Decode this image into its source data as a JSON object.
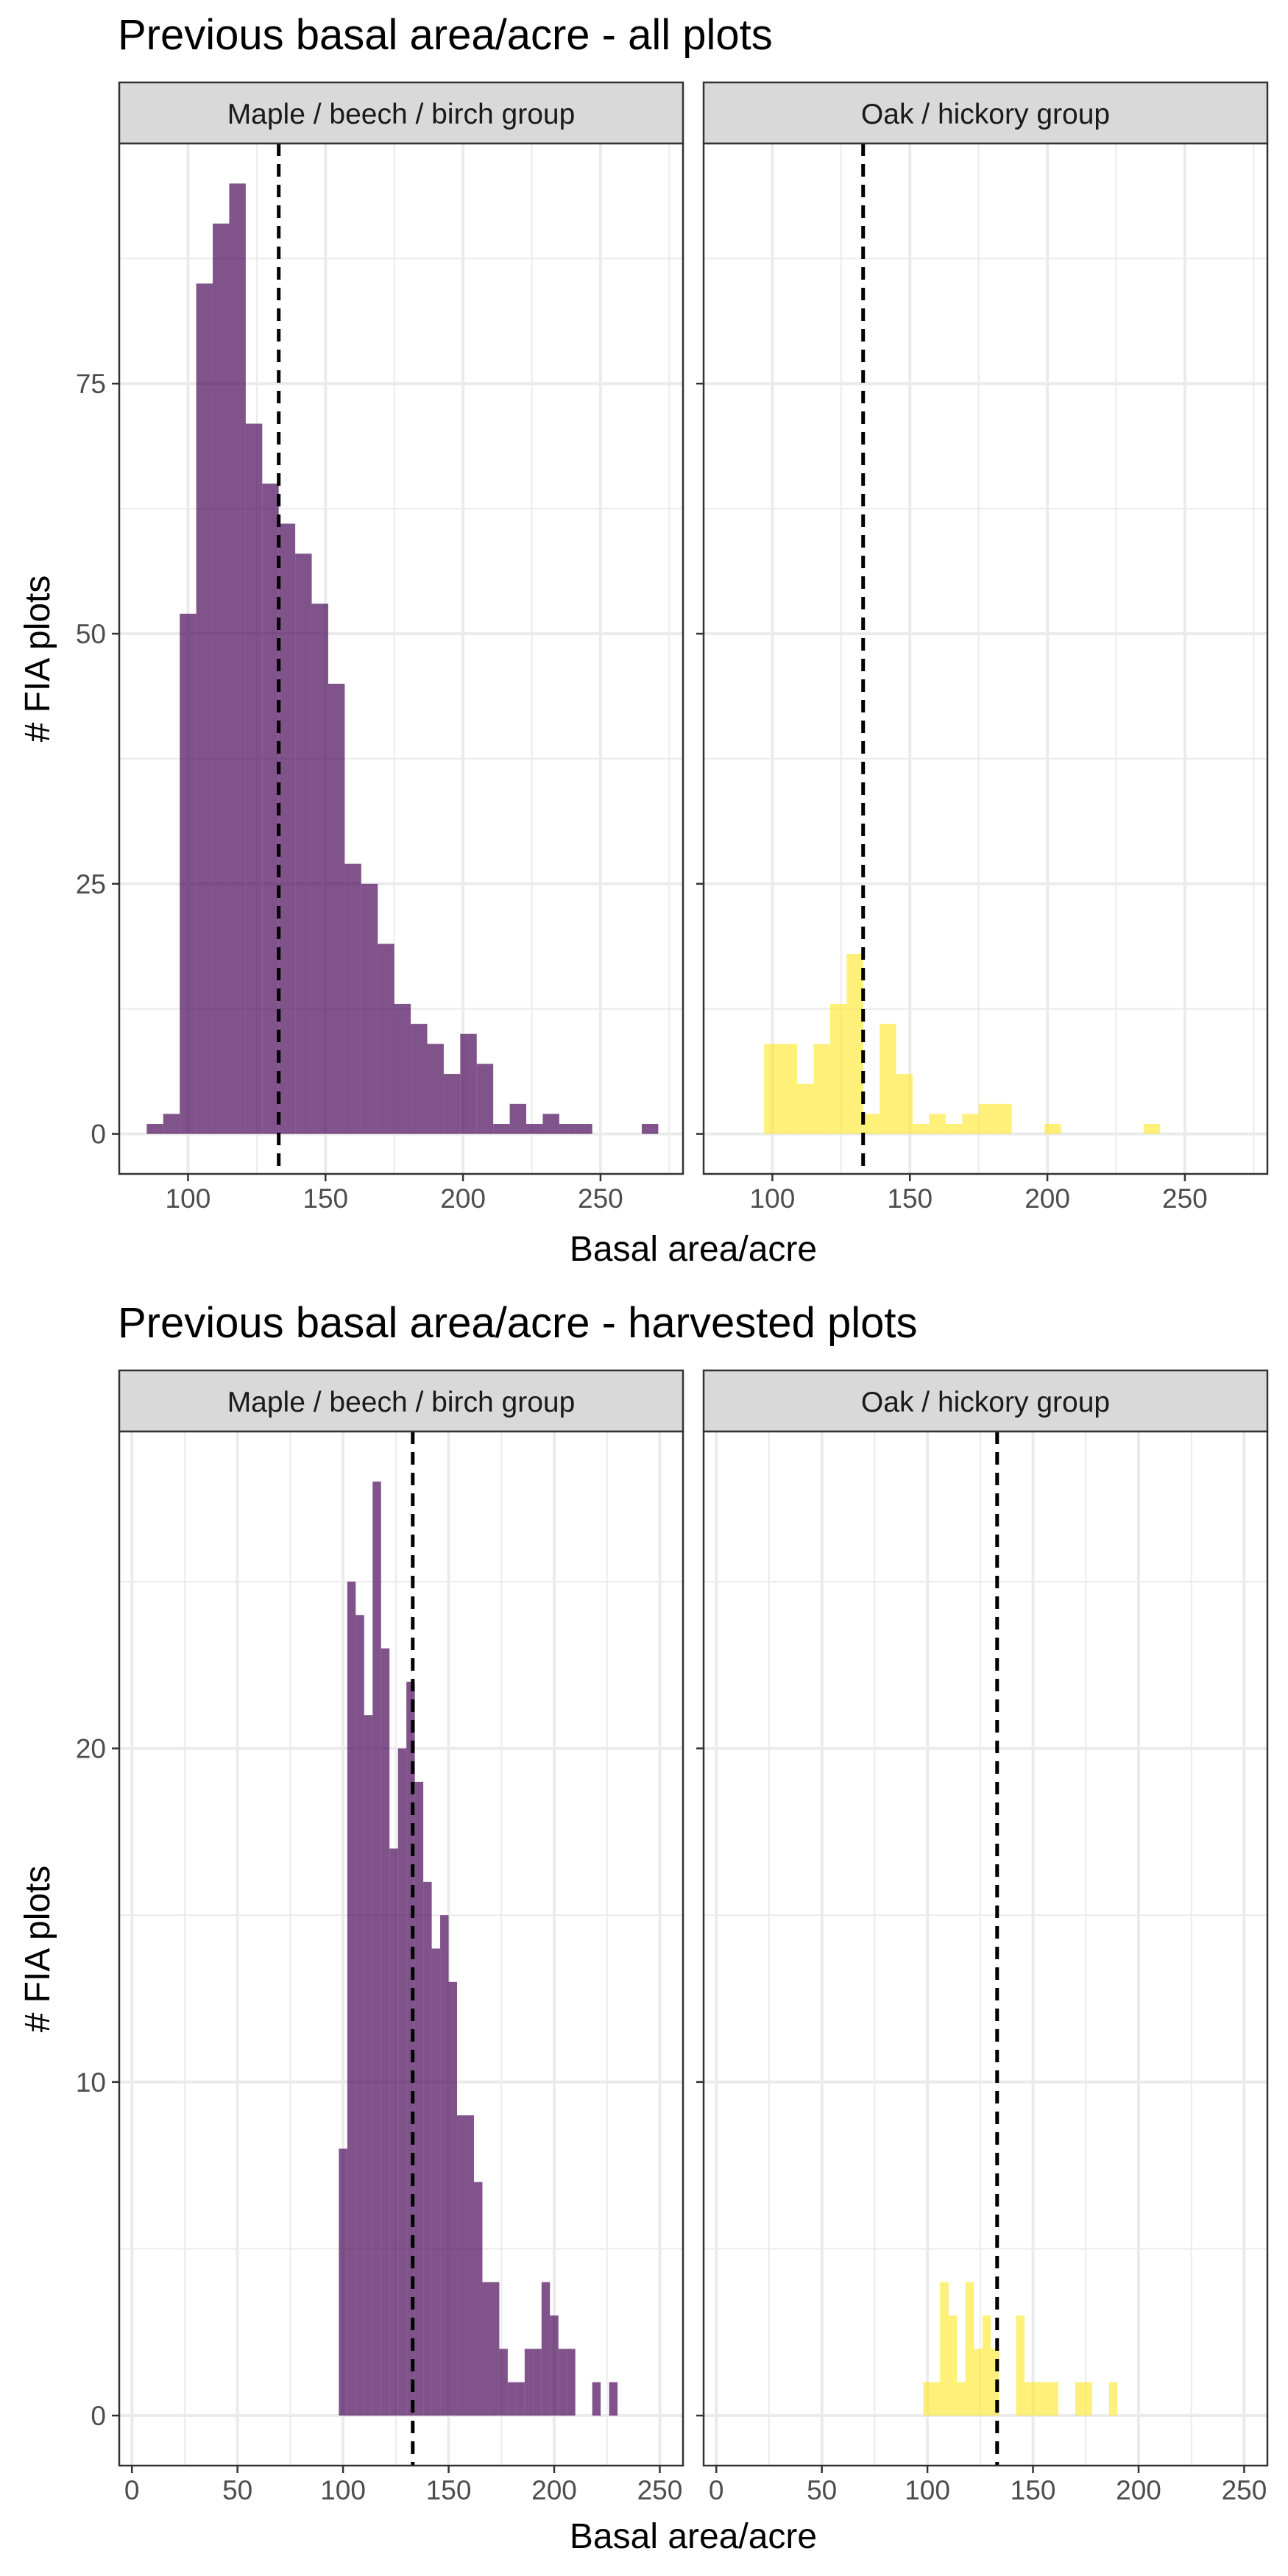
{
  "chart_data": [
    {
      "type": "bar",
      "title": "Previous basal area/acre - all plots",
      "xlabel": "Basal area/acre",
      "ylabel": "# FIA plots",
      "xlim": [
        75,
        280
      ],
      "ylim": [
        -4,
        99
      ],
      "x_ticks": [
        100,
        150,
        200,
        250
      ],
      "y_ticks": [
        0,
        25,
        50,
        75
      ],
      "ref_line_x": 133,
      "panels": [
        {
          "name": "Maple / beech / birch group",
          "color": "#440154",
          "bins": [
            {
              "x0": 85,
              "x1": 91,
              "count": 1
            },
            {
              "x0": 91,
              "x1": 97,
              "count": 2
            },
            {
              "x0": 97,
              "x1": 103,
              "count": 52
            },
            {
              "x0": 103,
              "x1": 109,
              "count": 85
            },
            {
              "x0": 109,
              "x1": 115,
              "count": 91
            },
            {
              "x0": 115,
              "x1": 121,
              "count": 95
            },
            {
              "x0": 121,
              "x1": 127,
              "count": 71
            },
            {
              "x0": 127,
              "x1": 133,
              "count": 65
            },
            {
              "x0": 133,
              "x1": 139,
              "count": 61
            },
            {
              "x0": 139,
              "x1": 145,
              "count": 58
            },
            {
              "x0": 145,
              "x1": 151,
              "count": 53
            },
            {
              "x0": 151,
              "x1": 157,
              "count": 45
            },
            {
              "x0": 157,
              "x1": 163,
              "count": 27
            },
            {
              "x0": 163,
              "x1": 169,
              "count": 25
            },
            {
              "x0": 169,
              "x1": 175,
              "count": 19
            },
            {
              "x0": 175,
              "x1": 181,
              "count": 13
            },
            {
              "x0": 181,
              "x1": 187,
              "count": 11
            },
            {
              "x0": 187,
              "x1": 193,
              "count": 9
            },
            {
              "x0": 193,
              "x1": 199,
              "count": 6
            },
            {
              "x0": 199,
              "x1": 205,
              "count": 10
            },
            {
              "x0": 205,
              "x1": 211,
              "count": 7
            },
            {
              "x0": 211,
              "x1": 217,
              "count": 1
            },
            {
              "x0": 217,
              "x1": 223,
              "count": 3
            },
            {
              "x0": 223,
              "x1": 229,
              "count": 1
            },
            {
              "x0": 229,
              "x1": 235,
              "count": 2
            },
            {
              "x0": 235,
              "x1": 241,
              "count": 1
            },
            {
              "x0": 241,
              "x1": 247,
              "count": 1
            },
            {
              "x0": 265,
              "x1": 271,
              "count": 1
            }
          ]
        },
        {
          "name": "Oak / hickory group",
          "color": "#FDE725",
          "bins": [
            {
              "x0": 97,
              "x1": 103,
              "count": 9
            },
            {
              "x0": 103,
              "x1": 109,
              "count": 9
            },
            {
              "x0": 109,
              "x1": 115,
              "count": 5
            },
            {
              "x0": 115,
              "x1": 121,
              "count": 9
            },
            {
              "x0": 121,
              "x1": 127,
              "count": 13
            },
            {
              "x0": 127,
              "x1": 133,
              "count": 18
            },
            {
              "x0": 133,
              "x1": 139,
              "count": 2
            },
            {
              "x0": 139,
              "x1": 145,
              "count": 11
            },
            {
              "x0": 145,
              "x1": 151,
              "count": 6
            },
            {
              "x0": 151,
              "x1": 157,
              "count": 1
            },
            {
              "x0": 157,
              "x1": 163,
              "count": 2
            },
            {
              "x0": 163,
              "x1": 169,
              "count": 1
            },
            {
              "x0": 169,
              "x1": 175,
              "count": 2
            },
            {
              "x0": 175,
              "x1": 181,
              "count": 3
            },
            {
              "x0": 181,
              "x1": 187,
              "count": 3
            },
            {
              "x0": 199,
              "x1": 205,
              "count": 1
            },
            {
              "x0": 235,
              "x1": 241,
              "count": 1
            }
          ]
        }
      ]
    },
    {
      "type": "bar",
      "title": "Previous basal area/acre - harvested plots",
      "xlabel": "Basal area/acre",
      "ylabel": "# FIA plots",
      "xlim": [
        -6,
        261
      ],
      "ylim": [
        -1.5,
        29.5
      ],
      "x_ticks": [
        0,
        50,
        100,
        150,
        200,
        250
      ],
      "y_ticks": [
        0,
        10,
        20
      ],
      "ref_line_x": 133,
      "panels": [
        {
          "name": "Maple / beech / birch group",
          "color": "#440154",
          "bins": [
            {
              "x0": 98,
              "x1": 102,
              "count": 8
            },
            {
              "x0": 102,
              "x1": 106,
              "count": 25
            },
            {
              "x0": 106,
              "x1": 110,
              "count": 24
            },
            {
              "x0": 110,
              "x1": 114,
              "count": 21
            },
            {
              "x0": 114,
              "x1": 118,
              "count": 28
            },
            {
              "x0": 118,
              "x1": 122,
              "count": 23
            },
            {
              "x0": 122,
              "x1": 126,
              "count": 17
            },
            {
              "x0": 126,
              "x1": 130,
              "count": 20
            },
            {
              "x0": 130,
              "x1": 134,
              "count": 22
            },
            {
              "x0": 134,
              "x1": 138,
              "count": 19
            },
            {
              "x0": 138,
              "x1": 142,
              "count": 16
            },
            {
              "x0": 142,
              "x1": 146,
              "count": 14
            },
            {
              "x0": 146,
              "x1": 150,
              "count": 15
            },
            {
              "x0": 150,
              "x1": 154,
              "count": 13
            },
            {
              "x0": 154,
              "x1": 158,
              "count": 9
            },
            {
              "x0": 158,
              "x1": 162,
              "count": 9
            },
            {
              "x0": 162,
              "x1": 166,
              "count": 7
            },
            {
              "x0": 166,
              "x1": 170,
              "count": 4
            },
            {
              "x0": 170,
              "x1": 174,
              "count": 4
            },
            {
              "x0": 174,
              "x1": 178,
              "count": 2
            },
            {
              "x0": 178,
              "x1": 182,
              "count": 1
            },
            {
              "x0": 182,
              "x1": 186,
              "count": 1
            },
            {
              "x0": 186,
              "x1": 190,
              "count": 2
            },
            {
              "x0": 190,
              "x1": 194,
              "count": 2
            },
            {
              "x0": 194,
              "x1": 198,
              "count": 4
            },
            {
              "x0": 198,
              "x1": 202,
              "count": 3
            },
            {
              "x0": 202,
              "x1": 206,
              "count": 2
            },
            {
              "x0": 206,
              "x1": 210,
              "count": 2
            },
            {
              "x0": 218,
              "x1": 222,
              "count": 1
            },
            {
              "x0": 226,
              "x1": 230,
              "count": 1
            }
          ]
        },
        {
          "name": "Oak / hickory group",
          "color": "#FDE725",
          "bins": [
            {
              "x0": 98,
              "x1": 102,
              "count": 1
            },
            {
              "x0": 102,
              "x1": 106,
              "count": 1
            },
            {
              "x0": 106,
              "x1": 110,
              "count": 4
            },
            {
              "x0": 110,
              "x1": 114,
              "count": 3
            },
            {
              "x0": 114,
              "x1": 118,
              "count": 1
            },
            {
              "x0": 118,
              "x1": 122,
              "count": 4
            },
            {
              "x0": 122,
              "x1": 126,
              "count": 2
            },
            {
              "x0": 126,
              "x1": 130,
              "count": 3
            },
            {
              "x0": 130,
              "x1": 134,
              "count": 2
            },
            {
              "x0": 142,
              "x1": 146,
              "count": 3
            },
            {
              "x0": 146,
              "x1": 150,
              "count": 1
            },
            {
              "x0": 150,
              "x1": 154,
              "count": 1
            },
            {
              "x0": 154,
              "x1": 158,
              "count": 1
            },
            {
              "x0": 158,
              "x1": 162,
              "count": 1
            },
            {
              "x0": 170,
              "x1": 174,
              "count": 1
            },
            {
              "x0": 174,
              "x1": 178,
              "count": 1
            },
            {
              "x0": 186,
              "x1": 190,
              "count": 1
            }
          ]
        }
      ]
    }
  ]
}
